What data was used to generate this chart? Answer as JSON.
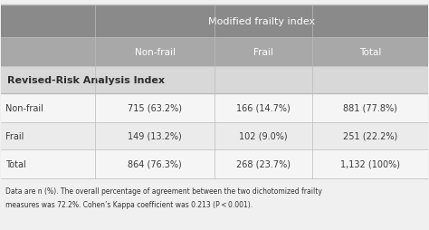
{
  "header_top": "Modified frailty index",
  "header_cols": [
    "Non-frail",
    "Frail",
    "Total"
  ],
  "row_header": "Revised-Risk Analysis Index",
  "rows": [
    [
      "Non-frail",
      "715 (63.2%)",
      "166 (14.7%)",
      "881 (77.8%)"
    ],
    [
      "Frail",
      "149 (13.2%)",
      "102 (9.0%)",
      "251 (22.2%)"
    ],
    [
      "Total",
      "864 (76.3%)",
      "268 (23.7%)",
      "1,132 (100%)"
    ]
  ],
  "footnote_line1": "Data are n (%). The overall percentage of agreement between the two dichotomized frailty",
  "footnote_line2": "measures was 72.2%. Cohen’s Kappa coefficient was 0.213 (P < 0.001).",
  "header_bg": "#8a8a8a",
  "subheader_bg": "#a8a8a8",
  "row_header_bg": "#d8d8d8",
  "row_bg_odd": "#f5f5f5",
  "row_bg_even": "#ebebeb",
  "header_text_color": "#ffffff",
  "row_header_text_color": "#2e2e2e",
  "cell_text_color": "#3a3a3a",
  "bg_color": "#f0f0f0",
  "line_color": "#bbbbbb"
}
